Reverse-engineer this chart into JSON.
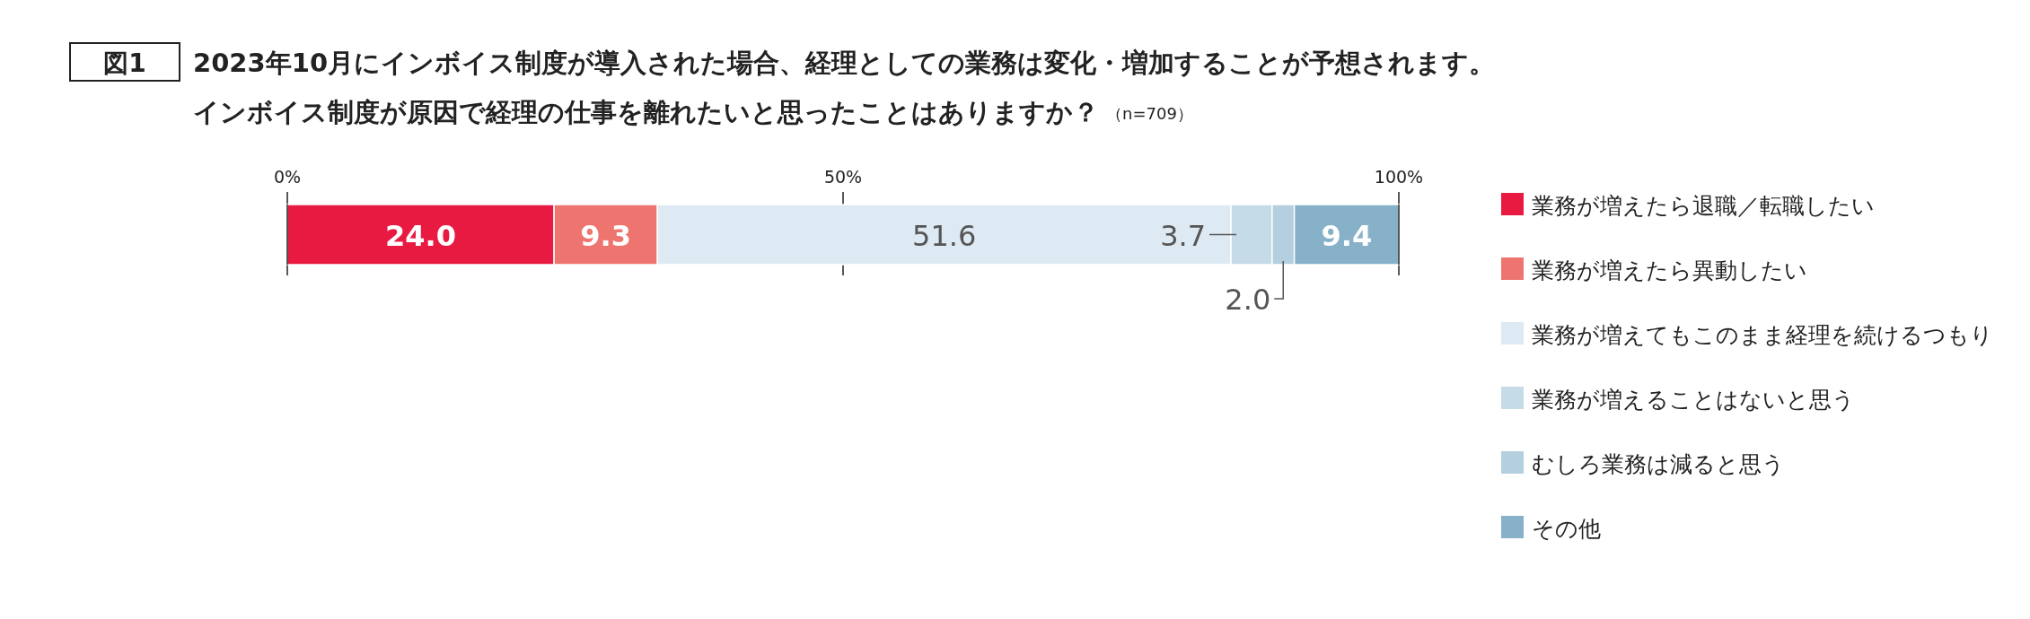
{
  "chart_data": {
    "type": "bar",
    "orientation": "horizontal",
    "stacked": true,
    "title": "2023年10月にインボイス制度が導入された場合、経理としての業務は変化・増加することが予想されます。",
    "subtitle": "インボイス制度が原因で経理の仕事を離れたいと思ったことはありますか？",
    "annotations": [
      "図1",
      "（n=709）"
    ],
    "categories": [
      null
    ],
    "xlim": [
      0,
      100
    ],
    "xticks": [
      {
        "value": 0,
        "label": "0%"
      },
      {
        "value": 50,
        "label": "50%"
      },
      {
        "value": 100,
        "label": "100%"
      }
    ],
    "legend": "right",
    "series": [
      {
        "name": "業務が増えたら退職／転職したい",
        "color": "#e81a42",
        "values": [
          24.0
        ],
        "value_labels": [
          "24.0"
        ]
      },
      {
        "name": "業務が増えたら異動したい",
        "color": "#ee756f",
        "values": [
          9.3
        ],
        "value_labels": [
          "9.3"
        ]
      },
      {
        "name": "業務が増えてもこのまま経理を続けるつもり",
        "color": "#deeaf3",
        "values": [
          51.6
        ],
        "value_labels": [
          "51.6"
        ]
      },
      {
        "name": "業務が増えることはないと思う",
        "color": "#c5dbe8",
        "values": [
          3.7
        ],
        "value_labels": [
          "3.7"
        ]
      },
      {
        "name": "むしろ業務は減ると思う",
        "color": "#b3cfe0",
        "values": [
          2.0
        ],
        "value_labels": [
          "2.0"
        ]
      },
      {
        "name": "その他",
        "color": "#86b1c9",
        "values": [
          9.4
        ],
        "value_labels": [
          "9.4"
        ]
      }
    ]
  }
}
